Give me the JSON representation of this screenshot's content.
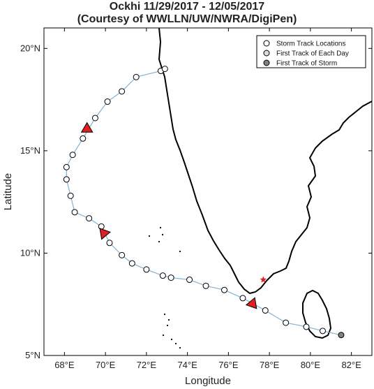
{
  "title": "Ockhi 11/29/2017 - 12/05/2017",
  "subtitle": "(Courtesy of WWLLN/UW/NWRA/DigiPen)",
  "xlabel": "Longitude",
  "ylabel": "Latitude",
  "legend": [
    {
      "label": "Storm Track Locations",
      "color": "#ffffff"
    },
    {
      "label": "First Track of Each Day",
      "color": "#d9d9d9"
    },
    {
      "label": "First Track of Storm",
      "color": "#808080"
    }
  ],
  "colors": {
    "track_line": "#7fb3d5",
    "day_marker": "#e02020",
    "star": "#e02020",
    "land": "#000000"
  },
  "chart_data": {
    "type": "scatter",
    "xlim": [
      67,
      83
    ],
    "ylim": [
      5,
      21
    ],
    "grid": false,
    "legend_position": "top-right",
    "x_ticks": [
      {
        "value": 68,
        "label": "68°E"
      },
      {
        "value": 70,
        "label": "70°E"
      },
      {
        "value": 72,
        "label": "72°E"
      },
      {
        "value": 74,
        "label": "74°E"
      },
      {
        "value": 76,
        "label": "76°E"
      },
      {
        "value": 78,
        "label": "78°E"
      },
      {
        "value": 80,
        "label": "80°E"
      },
      {
        "value": 82,
        "label": "82°E"
      }
    ],
    "y_ticks": [
      {
        "value": 5,
        "label": "5°N"
      },
      {
        "value": 10,
        "label": "10°N"
      },
      {
        "value": 15,
        "label": "15°N"
      },
      {
        "value": 20,
        "label": "20°N"
      }
    ],
    "first_track": {
      "lon": 81.5,
      "lat": 6.0
    },
    "track": [
      [
        81.5,
        6.0
      ],
      [
        80.6,
        6.2
      ],
      [
        79.8,
        6.4
      ],
      [
        78.8,
        6.6
      ],
      [
        77.8,
        7.2
      ],
      [
        76.7,
        7.8
      ],
      [
        75.8,
        8.2
      ],
      [
        74.9,
        8.4
      ],
      [
        74.1,
        8.7
      ],
      [
        73.2,
        8.8
      ],
      [
        72.8,
        8.9
      ],
      [
        72.0,
        9.2
      ],
      [
        71.3,
        9.5
      ],
      [
        70.8,
        9.9
      ],
      [
        70.2,
        10.5
      ],
      [
        69.8,
        11.3
      ],
      [
        69.2,
        11.7
      ],
      [
        68.5,
        12.0
      ],
      [
        68.3,
        12.8
      ],
      [
        68.1,
        13.6
      ],
      [
        68.1,
        14.2
      ],
      [
        68.4,
        14.8
      ],
      [
        68.9,
        15.6
      ],
      [
        69.5,
        16.6
      ],
      [
        70.1,
        17.4
      ],
      [
        70.8,
        17.9
      ],
      [
        71.5,
        18.6
      ],
      [
        72.7,
        18.9
      ],
      [
        72.9,
        19.0
      ]
    ],
    "day_markers": [
      {
        "lon": 77.2,
        "lat": 7.5,
        "dir": "down-right"
      },
      {
        "lon": 69.9,
        "lat": 11.0,
        "dir": "up-left"
      },
      {
        "lon": 69.1,
        "lat": 16.1,
        "dir": "up"
      }
    ],
    "star": {
      "lon": 77.7,
      "lat": 8.7
    }
  }
}
